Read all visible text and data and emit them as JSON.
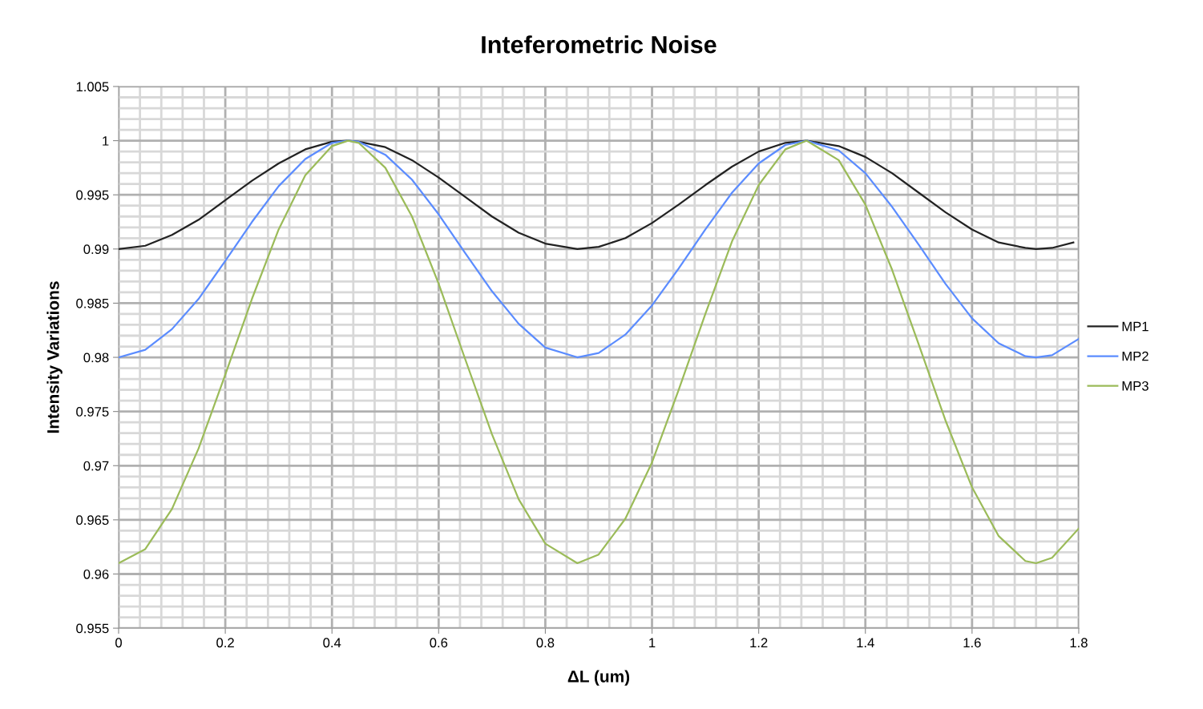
{
  "chart_data": {
    "type": "line",
    "title": "Inteferometric Noise",
    "xlabel": "ΔL (um)",
    "ylabel": "Intensity Variations",
    "xlim": [
      0,
      1.8
    ],
    "xticks": [
      0,
      0.2,
      0.4,
      0.6,
      0.8,
      1,
      1.2,
      1.4,
      1.6,
      1.8
    ],
    "ylim": [
      0.955,
      1.005
    ],
    "yticks": [
      0.955,
      0.96,
      0.965,
      0.97,
      0.975,
      0.98,
      0.985,
      0.99,
      0.995,
      1,
      1.005
    ],
    "grid": true,
    "legend": "right",
    "marker": "none",
    "line_style": "solid",
    "series": [
      {
        "name": "MP1",
        "color": "#222222",
        "x": [
          0,
          0.05,
          0.1,
          0.15,
          0.2,
          0.25,
          0.3,
          0.35,
          0.4,
          0.43,
          0.45,
          0.5,
          0.55,
          0.6,
          0.65,
          0.7,
          0.75,
          0.8,
          0.86,
          0.9,
          0.95,
          1.0,
          1.05,
          1.1,
          1.15,
          1.2,
          1.25,
          1.29,
          1.35,
          1.4,
          1.45,
          1.5,
          1.55,
          1.6,
          1.65,
          1.7,
          1.72,
          1.75,
          1.79
        ],
        "values": [
          0.99,
          0.9903,
          0.9913,
          0.9927,
          0.9945,
          0.9963,
          0.9979,
          0.9992,
          0.9999,
          1,
          0.9999,
          0.9994,
          0.9982,
          0.9966,
          0.9948,
          0.993,
          0.9915,
          0.9905,
          0.99,
          0.9902,
          0.991,
          0.9924,
          0.9941,
          0.9959,
          0.9976,
          0.999,
          0.9998,
          1,
          0.9995,
          0.9985,
          0.997,
          0.9952,
          0.9934,
          0.9918,
          0.9906,
          0.9901,
          0.99,
          0.9901,
          0.9906
        ]
      },
      {
        "name": "MP2",
        "color": "#5b8cff",
        "x": [
          0,
          0.05,
          0.1,
          0.15,
          0.2,
          0.25,
          0.3,
          0.35,
          0.4,
          0.43,
          0.45,
          0.5,
          0.55,
          0.6,
          0.65,
          0.7,
          0.75,
          0.8,
          0.86,
          0.9,
          0.95,
          1.0,
          1.05,
          1.1,
          1.15,
          1.2,
          1.25,
          1.29,
          1.35,
          1.4,
          1.45,
          1.5,
          1.55,
          1.6,
          1.65,
          1.7,
          1.72,
          1.75,
          1.8
        ],
        "values": [
          0.98,
          0.9807,
          0.9826,
          0.9854,
          0.9889,
          0.9925,
          0.9958,
          0.9983,
          0.9998,
          1,
          0.9999,
          0.9987,
          0.9964,
          0.9932,
          0.9896,
          0.9861,
          0.9831,
          0.9809,
          0.98,
          0.9804,
          0.9821,
          0.9848,
          0.9882,
          0.9918,
          0.9952,
          0.9979,
          0.9996,
          1,
          0.9991,
          0.997,
          0.9939,
          0.9904,
          0.9868,
          0.9836,
          0.9813,
          0.9801,
          0.98,
          0.9802,
          0.9817
        ]
      },
      {
        "name": "MP3",
        "color": "#9bbb59",
        "x": [
          0,
          0.05,
          0.1,
          0.15,
          0.2,
          0.25,
          0.3,
          0.35,
          0.4,
          0.43,
          0.45,
          0.5,
          0.55,
          0.6,
          0.65,
          0.7,
          0.75,
          0.8,
          0.86,
          0.9,
          0.95,
          1.0,
          1.05,
          1.1,
          1.15,
          1.2,
          1.25,
          1.29,
          1.35,
          1.4,
          1.45,
          1.5,
          1.55,
          1.6,
          1.65,
          1.7,
          1.72,
          1.75,
          1.8
        ],
        "values": [
          0.961,
          0.9623,
          0.966,
          0.9716,
          0.9784,
          0.9854,
          0.9918,
          0.9968,
          0.9995,
          1,
          0.9998,
          0.9975,
          0.993,
          0.9868,
          0.9798,
          0.9729,
          0.9669,
          0.9628,
          0.961,
          0.9618,
          0.9651,
          0.9703,
          0.977,
          0.984,
          0.9907,
          0.9959,
          0.9992,
          1,
          0.9982,
          0.9941,
          0.9881,
          0.9812,
          0.9742,
          0.968,
          0.9635,
          0.9612,
          0.961,
          0.9615,
          0.9642
        ]
      }
    ]
  }
}
